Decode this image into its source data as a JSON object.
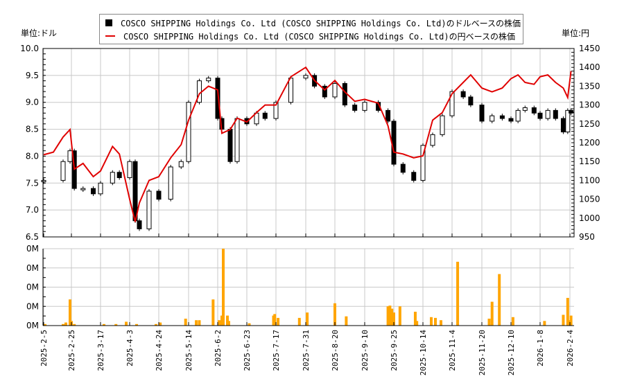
{
  "legend": {
    "usd_series": "COSCO SHIPPING Holdings Co. Ltd (COSCO SHIPPING Holdings Co. Ltd)のドルベースの株価",
    "jpy_series": "COSCO SHIPPING Holdings Co. Ltd (COSCO SHIPPING Holdings Co. Ltd)の円ベースの株価"
  },
  "units": {
    "left": "単位:ドル",
    "right": "単位:円"
  },
  "colors": {
    "line": "#e00000",
    "candle": "#000000",
    "volume": "#ffa500",
    "grid": "#c8c8c8"
  },
  "chart_data": [
    {
      "type": "line",
      "title": "",
      "series": [
        {
          "name": "COSCO SHIPPING Holdings Co. Ltd の円ベースの株価",
          "axis": "right",
          "x": [
            "2025-2-5",
            "2025-2-12",
            "2025-2-19",
            "2025-2-24",
            "2025-2-27",
            "2025-3-5",
            "2025-3-12",
            "2025-3-17",
            "2025-3-24",
            "2025-3-28",
            "2025-4-3",
            "2025-4-7",
            "2025-4-10",
            "2025-4-17",
            "2025-4-24",
            "2025-5-2",
            "2025-5-9",
            "2025-5-14",
            "2025-5-21",
            "2025-5-27",
            "2025-6-2",
            "2025-6-5",
            "2025-6-11",
            "2025-6-16",
            "2025-6-23",
            "2025-7-1",
            "2025-7-8",
            "2025-7-17",
            "2025-7-24",
            "2025-7-31",
            "2025-8-6",
            "2025-8-13",
            "2025-8-20",
            "2025-8-27",
            "2025-9-3",
            "2025-9-10",
            "2025-9-17",
            "2025-9-22",
            "2025-9-25",
            "2025-10-1",
            "2025-10-8",
            "2025-10-14",
            "2025-10-21",
            "2025-10-28",
            "2025-11-4",
            "2025-11-10",
            "2025-11-14",
            "2025-11-20",
            "2025-11-27",
            "2025-12-4",
            "2025-12-10",
            "2025-12-17",
            "2025-12-24",
            "2026-1-2",
            "2026-1-8",
            "2026-1-15",
            "2026-1-22",
            "2026-1-29",
            "2026-2-2",
            "2026-2-5"
          ],
          "values": [
            1168,
            1175,
            1215,
            1235,
            1130,
            1145,
            1110,
            1125,
            1190,
            1170,
            1050,
            990,
            1040,
            1100,
            1110,
            1160,
            1195,
            1260,
            1330,
            1350,
            1340,
            1225,
            1235,
            1265,
            1255,
            1280,
            1300,
            1300,
            1375,
            1400,
            1365,
            1340,
            1365,
            1335,
            1310,
            1315,
            1305,
            1245,
            1175,
            1170,
            1160,
            1165,
            1260,
            1280,
            1330,
            1360,
            1380,
            1345,
            1335,
            1345,
            1370,
            1380,
            1360,
            1355,
            1375,
            1380,
            1360,
            1345,
            1320,
            1390
          ]
        }
      ],
      "candles_usd": {
        "axis": "left",
        "note": "OHLC candlesticks (approx. closing levels, USD)",
        "x": [
          "2025-2-5",
          "2025-2-19",
          "2025-2-24",
          "2025-2-27",
          "2025-3-5",
          "2025-3-12",
          "2025-3-17",
          "2025-3-24",
          "2025-3-28",
          "2025-4-3",
          "2025-4-7",
          "2025-4-10",
          "2025-4-17",
          "2025-4-24",
          "2025-5-2",
          "2025-5-9",
          "2025-5-14",
          "2025-5-21",
          "2025-5-27",
          "2025-6-2",
          "2025-6-5",
          "2025-6-11",
          "2025-6-16",
          "2025-6-23",
          "2025-7-1",
          "2025-7-8",
          "2025-7-17",
          "2025-7-24",
          "2025-7-31",
          "2025-8-6",
          "2025-8-13",
          "2025-8-20",
          "2025-8-27",
          "2025-9-3",
          "2025-9-10",
          "2025-9-17",
          "2025-9-22",
          "2025-9-25",
          "2025-10-1",
          "2025-10-8",
          "2025-10-14",
          "2025-10-21",
          "2025-10-28",
          "2025-11-4",
          "2025-11-10",
          "2025-11-14",
          "2025-11-20",
          "2025-11-27",
          "2025-12-4",
          "2025-12-10",
          "2025-12-17",
          "2025-12-24",
          "2026-1-2",
          "2026-1-8",
          "2026-1-15",
          "2026-1-22",
          "2026-1-29",
          "2026-2-2",
          "2026-2-5"
        ],
        "values": [
          7.55,
          7.9,
          8.1,
          7.4,
          7.4,
          7.3,
          7.5,
          7.7,
          7.6,
          7.9,
          6.8,
          6.65,
          7.35,
          7.2,
          7.8,
          7.9,
          9.0,
          9.4,
          9.45,
          8.7,
          8.5,
          7.9,
          8.7,
          8.6,
          8.8,
          8.7,
          9.0,
          9.45,
          9.5,
          9.3,
          9.1,
          9.35,
          8.95,
          8.85,
          9.0,
          8.85,
          8.65,
          7.85,
          7.7,
          7.55,
          8.2,
          8.4,
          8.75,
          9.2,
          9.1,
          8.95,
          8.65,
          8.75,
          8.7,
          8.65,
          8.85,
          8.9,
          8.8,
          8.7,
          8.85,
          8.7,
          8.45,
          8.85,
          8.8
        ]
      },
      "xlabel": "",
      "ylabel_left": "単位:ドル",
      "ylabel_right": "単位:円",
      "ylim_left": [
        6.5,
        10.0
      ],
      "ylim_right": [
        950,
        1450
      ],
      "yticks_left": [
        "6.5",
        "7.0",
        "7.5",
        "8.0",
        "8.5",
        "9.0",
        "9.5",
        "10.0"
      ],
      "yticks_right": [
        "950",
        "1000",
        "1050",
        "1100",
        "1150",
        "1200",
        "1250",
        "1300",
        "1350",
        "1400",
        "1450"
      ],
      "grid": true,
      "legend_position": "top"
    },
    {
      "type": "bar",
      "title": "",
      "ylabel": "",
      "yticks": [
        "0M",
        "0M",
        "0M",
        "0M",
        "0M"
      ],
      "xticks": [
        "2025-2-5",
        "2025-2-25",
        "2025-3-17",
        "2025-4-3",
        "2025-4-24",
        "2025-5-14",
        "2025-6-2",
        "2025-6-23",
        "2025-7-17",
        "2025-7-31",
        "2025-8-20",
        "2025-9-10",
        "2025-9-25",
        "2025-10-14",
        "2025-11-4",
        "2025-11-20",
        "2025-12-10",
        "2026-1-8",
        "2026-2-4"
      ],
      "note": "Volume relative heights (0-1 of panel max); axis labels all read 0M",
      "x": [
        "2025-2-6",
        "2025-2-19",
        "2025-2-21",
        "2025-2-24",
        "2025-2-25",
        "2025-2-27",
        "2025-3-19",
        "2025-3-26",
        "2025-4-1",
        "2025-4-8",
        "2025-4-22",
        "2025-4-25",
        "2025-5-12",
        "2025-5-19",
        "2025-5-21",
        "2025-5-30",
        "2025-6-3",
        "2025-6-5",
        "2025-6-6",
        "2025-6-9",
        "2025-6-10",
        "2025-6-25",
        "2025-7-15",
        "2025-7-16",
        "2025-7-18",
        "2025-7-28",
        "2025-8-1",
        "2025-8-20",
        "2025-8-28",
        "2025-9-22",
        "2025-9-23",
        "2025-9-24",
        "2025-9-25",
        "2025-9-29",
        "2025-10-9",
        "2025-10-10",
        "2025-10-20",
        "2025-10-23",
        "2025-10-27",
        "2025-11-7",
        "2025-11-25",
        "2025-11-27",
        "2025-12-2",
        "2025-12-12",
        "2026-1-12",
        "2026-1-29",
        "2026-2-2",
        "2026-2-3",
        "2026-2-5"
      ],
      "values": [
        0.02,
        0.02,
        0.04,
        0.34,
        0.06,
        0.02,
        0.02,
        0.02,
        0.05,
        0.02,
        0.02,
        0.04,
        0.09,
        0.07,
        0.07,
        0.34,
        0.07,
        0.13,
        1.0,
        0.13,
        0.06,
        0.03,
        0.13,
        0.15,
        0.1,
        0.1,
        0.17,
        0.29,
        0.12,
        0.25,
        0.26,
        0.22,
        0.17,
        0.25,
        0.18,
        0.06,
        0.11,
        0.1,
        0.07,
        0.83,
        0.09,
        0.31,
        0.67,
        0.11,
        0.06,
        0.14,
        0.36,
        0.07,
        0.13
      ]
    }
  ]
}
